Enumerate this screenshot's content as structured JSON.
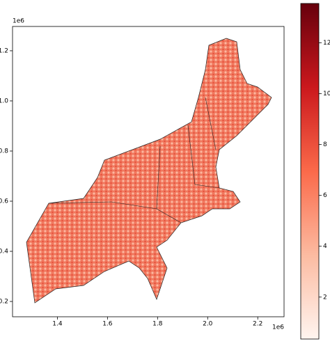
{
  "chart_data": {
    "type": "hexbin-map",
    "xlim": [
      1.221,
      2.305
    ],
    "ylim": [
      0.139,
      1.297
    ],
    "xticks": [
      1.4,
      1.6,
      1.8,
      {
        "value": 2,
        "label": "2.0"
      },
      2.2
    ],
    "yticks": [
      0.2,
      0.4,
      0.6,
      0.8,
      {
        "value": 1,
        "label": "1.0"
      },
      1.2
    ],
    "x_offset_label": "1e6",
    "y_offset_label": "1e6",
    "colorbar": {
      "lim": [
        0.35,
        13.55
      ],
      "ticks": [
        2,
        4,
        6,
        8,
        10,
        12
      ],
      "colormap": [
        "#fff5f0",
        "#fcbba1",
        "#fb6a4a",
        "#cb181d",
        "#67000d"
      ]
    }
  }
}
